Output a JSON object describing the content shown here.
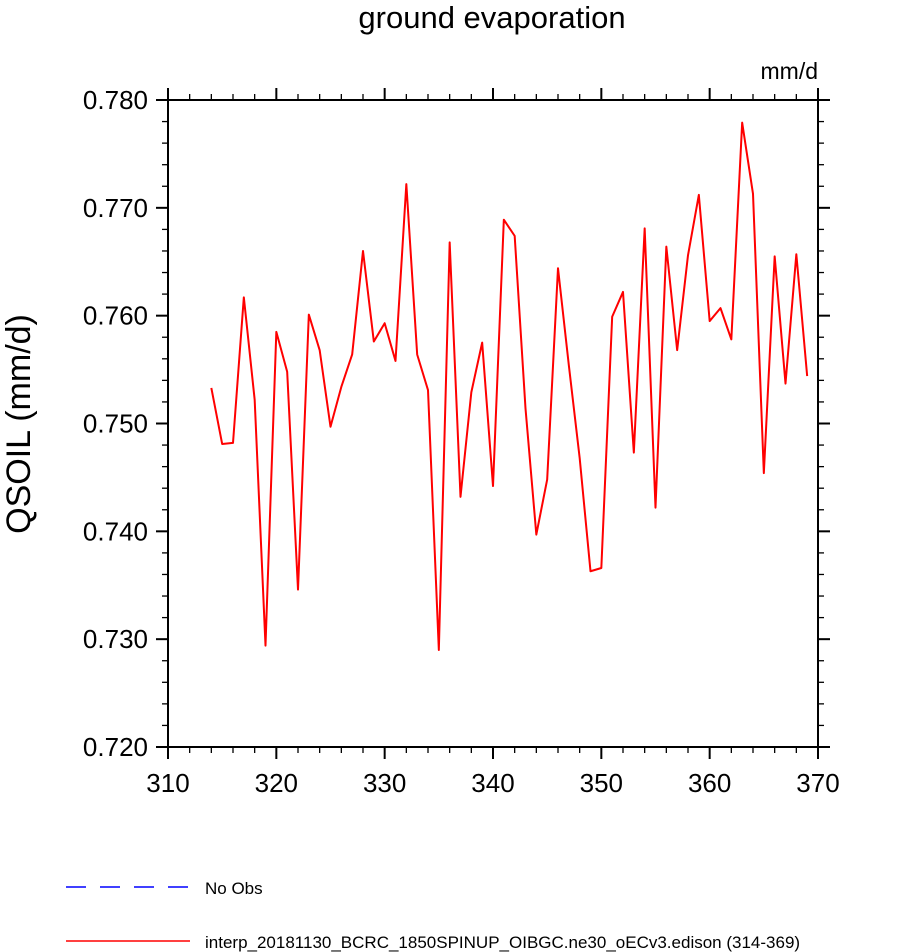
{
  "chart_data": {
    "type": "line",
    "title": "ground evaporation",
    "units_label": "mm/d",
    "ylabel": "QSOIL  (mm/d)",
    "xlabel": "",
    "xlim": [
      310,
      370
    ],
    "ylim": [
      0.72,
      0.78
    ],
    "x_ticks": [
      310,
      320,
      330,
      340,
      350,
      360,
      370
    ],
    "x_tick_labels": [
      "310",
      "320",
      "330",
      "340",
      "350",
      "360",
      "370"
    ],
    "y_ticks": [
      0.72,
      0.73,
      0.74,
      0.75,
      0.76,
      0.77,
      0.78
    ],
    "y_tick_labels": [
      "0.720",
      "0.730",
      "0.740",
      "0.750",
      "0.760",
      "0.770",
      "0.780"
    ],
    "x_minor_step": 2,
    "y_minor_step": 0.002,
    "grid": false,
    "legend_position": "bottom",
    "series": [
      {
        "name": "No Obs",
        "color": "#0000ff",
        "dash": true,
        "x": [],
        "values": []
      },
      {
        "name": "interp_20181130_BCRC_1850SPINUP_OIBGC.ne30_oECv3.edison (314-369)",
        "color": "#ff0000",
        "dash": false,
        "x": [
          314,
          315,
          316,
          317,
          318,
          319,
          320,
          321,
          322,
          323,
          324,
          325,
          326,
          327,
          328,
          329,
          330,
          331,
          332,
          333,
          334,
          335,
          336,
          337,
          338,
          339,
          340,
          341,
          342,
          343,
          344,
          345,
          346,
          347,
          348,
          349,
          350,
          351,
          352,
          353,
          354,
          355,
          356,
          357,
          358,
          359,
          360,
          361,
          362,
          363,
          364,
          365,
          366,
          367,
          368,
          369
        ],
        "values": [
          0.7533,
          0.7481,
          0.7482,
          0.7617,
          0.7522,
          0.7294,
          0.7585,
          0.7548,
          0.7346,
          0.7601,
          0.7568,
          0.7497,
          0.7534,
          0.7564,
          0.766,
          0.7576,
          0.7593,
          0.7558,
          0.7722,
          0.7564,
          0.7531,
          0.729,
          0.7668,
          0.7432,
          0.7529,
          0.7575,
          0.7442,
          0.7689,
          0.7674,
          0.7514,
          0.7397,
          0.7448,
          0.7644,
          0.7554,
          0.7468,
          0.7363,
          0.7366,
          0.7599,
          0.7622,
          0.7473,
          0.7681,
          0.7422,
          0.7664,
          0.7568,
          0.7656,
          0.7712,
          0.7595,
          0.7607,
          0.7578,
          0.7779,
          0.7713,
          0.7454,
          0.7655,
          0.7537,
          0.7657,
          0.7544
        ]
      }
    ]
  }
}
